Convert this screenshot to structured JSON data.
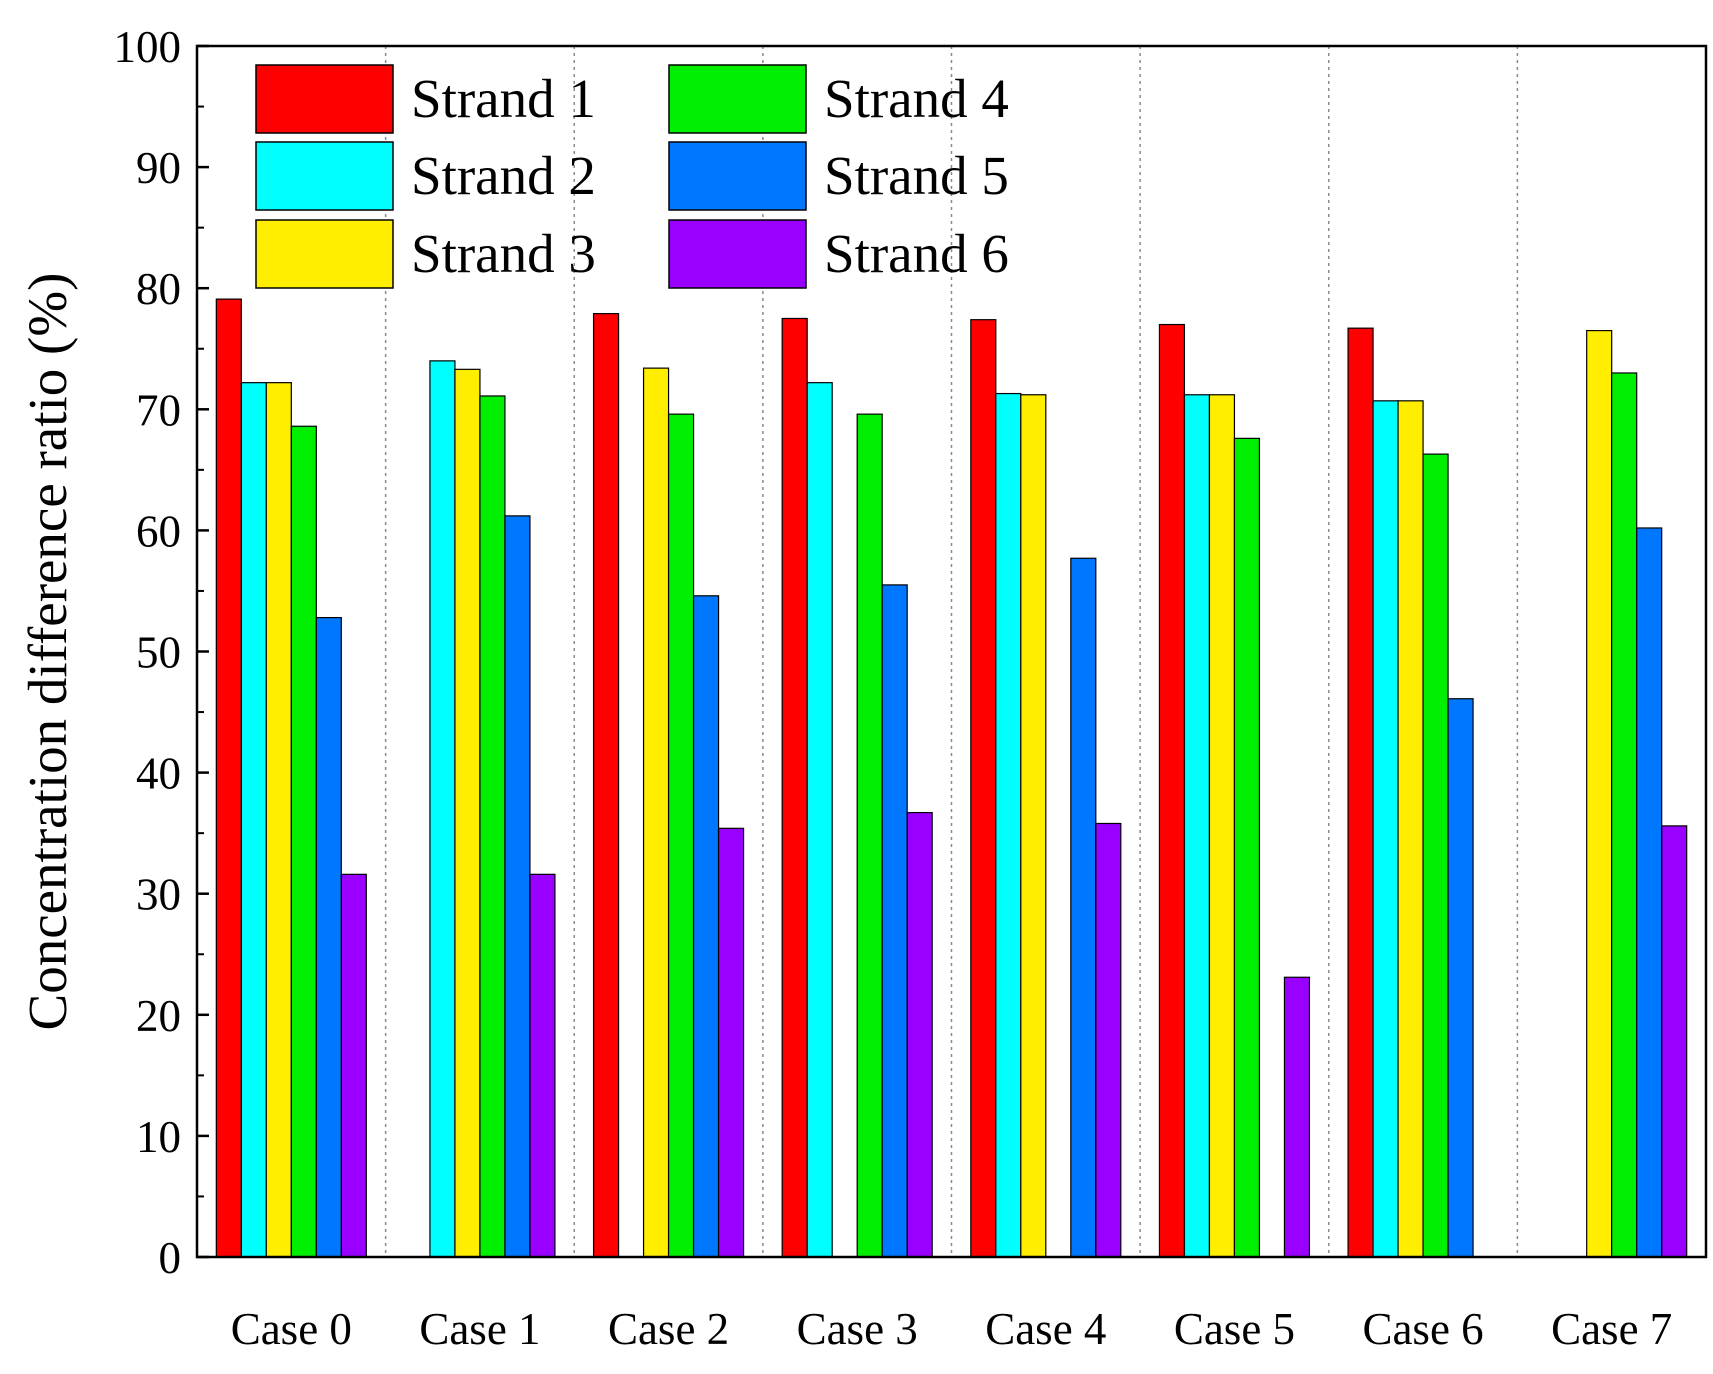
{
  "chart_data": {
    "type": "bar",
    "title": "",
    "xlabel": "",
    "ylabel": "Concentration difference ratio (%)",
    "ylim": [
      0,
      100
    ],
    "yticks": [
      "0",
      "10",
      "20",
      "30",
      "40",
      "50",
      "60",
      "70",
      "80",
      "90",
      "100"
    ],
    "categories": [
      "Case 0",
      "Case 1",
      "Case 2",
      "Case 3",
      "Case 4",
      "Case 5",
      "Case 6",
      "Case 7"
    ],
    "legend_position": "top-left",
    "grid": "vertical dotted separators between cases",
    "series": [
      {
        "name": "Strand 1",
        "color": "#ff0000",
        "values": [
          79.1,
          null,
          77.9,
          77.5,
          77.4,
          77.0,
          76.7,
          null
        ]
      },
      {
        "name": "Strand 2",
        "color": "#00ffff",
        "values": [
          72.2,
          74.0,
          null,
          72.2,
          71.3,
          71.2,
          70.7,
          null
        ]
      },
      {
        "name": "Strand 3",
        "color": "#ffee00",
        "values": [
          72.2,
          73.3,
          73.4,
          null,
          71.2,
          71.2,
          70.7,
          76.5
        ]
      },
      {
        "name": "Strand 4",
        "color": "#00ee00",
        "values": [
          68.6,
          71.1,
          69.6,
          69.6,
          null,
          67.6,
          66.3,
          73.0
        ]
      },
      {
        "name": "Strand 5",
        "color": "#0077ff",
        "values": [
          52.8,
          61.2,
          54.6,
          55.5,
          57.7,
          null,
          46.1,
          60.2
        ]
      },
      {
        "name": "Strand 6",
        "color": "#9900ff",
        "values": [
          31.6,
          31.6,
          35.4,
          36.7,
          35.8,
          23.1,
          null,
          35.6
        ]
      }
    ]
  }
}
